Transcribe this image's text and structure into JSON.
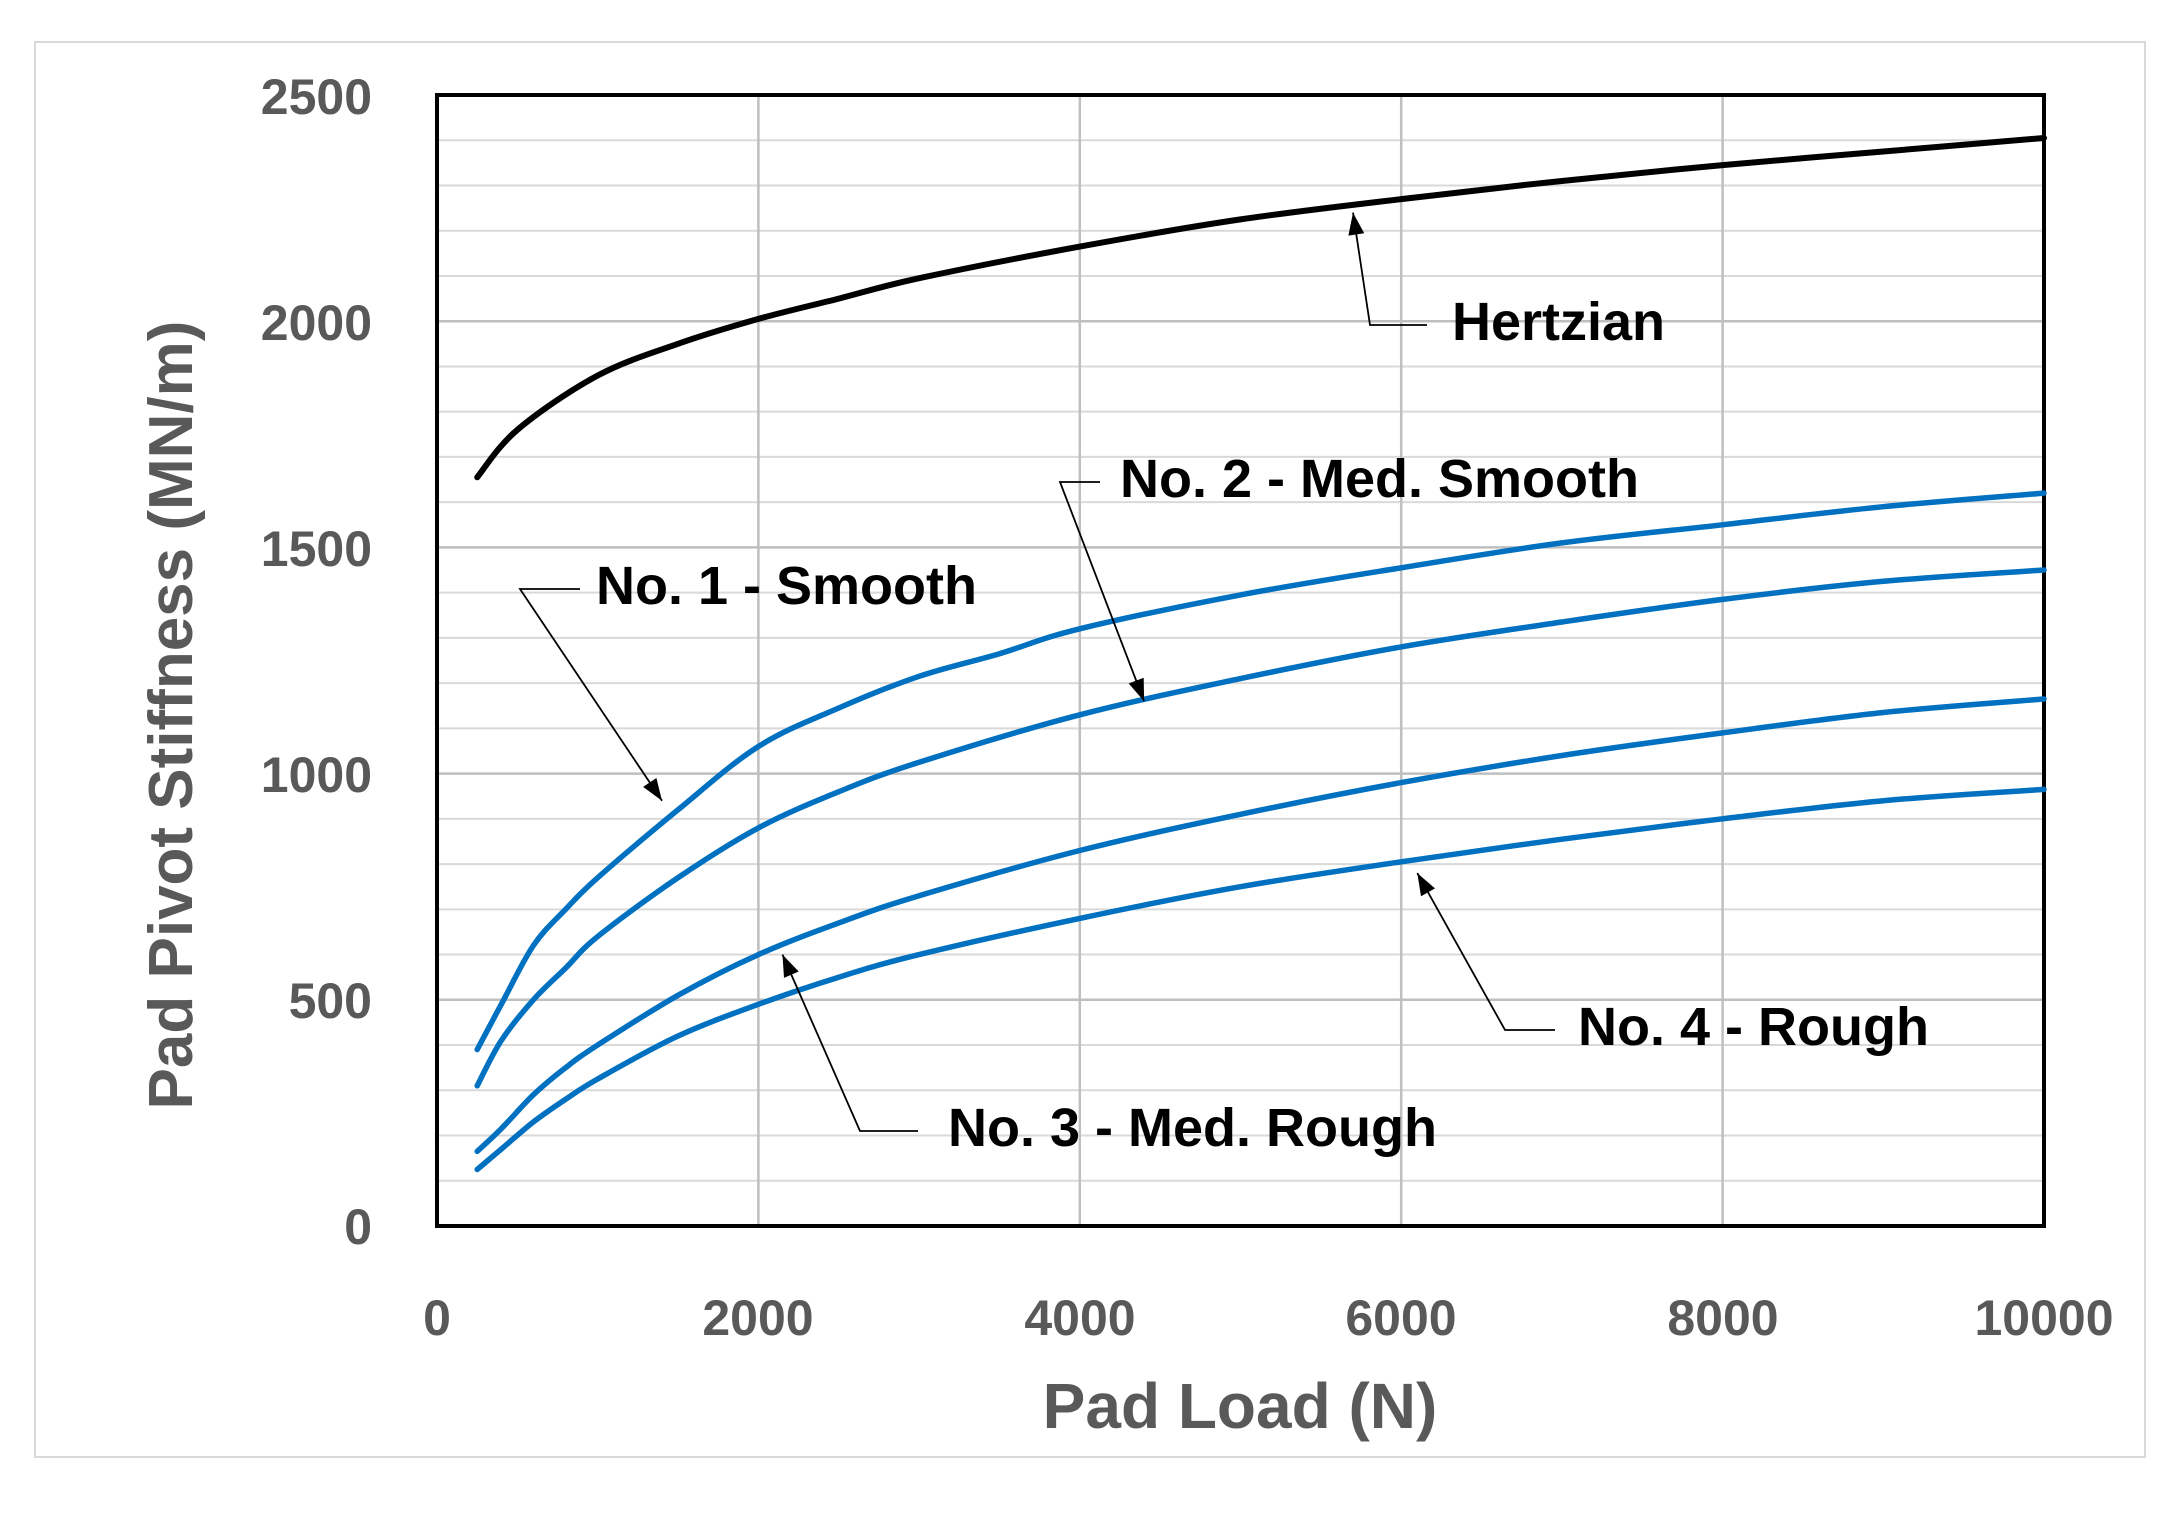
{
  "chart_data": {
    "type": "line",
    "title": "",
    "xlabel": "Pad Load (N)",
    "ylabel": "Pad Pivot Stiffness (MN/m)",
    "xlim": [
      0,
      10000
    ],
    "ylim": [
      0,
      2500
    ],
    "x_ticks": [
      "0",
      "2000",
      "4000",
      "6000",
      "8000",
      "10000"
    ],
    "y_ticks": [
      "0",
      "500",
      "1000",
      "1500",
      "2000",
      "2500"
    ],
    "grid": true,
    "series": [
      {
        "name": "Hertzian",
        "color": "#000000",
        "points": [
          [
            250,
            1655
          ],
          [
            500,
            1760
          ],
          [
            1000,
            1880
          ],
          [
            1500,
            1950
          ],
          [
            2000,
            2005
          ],
          [
            2500,
            2050
          ],
          [
            3000,
            2095
          ],
          [
            4000,
            2165
          ],
          [
            5000,
            2225
          ],
          [
            6000,
            2270
          ],
          [
            7000,
            2310
          ],
          [
            8000,
            2345
          ],
          [
            9000,
            2375
          ],
          [
            10000,
            2405
          ]
        ]
      },
      {
        "name": "No. 1 - Smooth",
        "color": "#0070C0",
        "points": [
          [
            250,
            390
          ],
          [
            400,
            490
          ],
          [
            600,
            620
          ],
          [
            800,
            700
          ],
          [
            1000,
            770
          ],
          [
            1500,
            920
          ],
          [
            2000,
            1060
          ],
          [
            2500,
            1145
          ],
          [
            3000,
            1215
          ],
          [
            3500,
            1265
          ],
          [
            4000,
            1320
          ],
          [
            5000,
            1395
          ],
          [
            6000,
            1455
          ],
          [
            7000,
            1510
          ],
          [
            8000,
            1550
          ],
          [
            9000,
            1590
          ],
          [
            10000,
            1620
          ]
        ]
      },
      {
        "name": "No. 2 - Med. Smooth",
        "color": "#0070C0",
        "points": [
          [
            250,
            310
          ],
          [
            400,
            410
          ],
          [
            600,
            500
          ],
          [
            800,
            570
          ],
          [
            1000,
            640
          ],
          [
            1500,
            770
          ],
          [
            2000,
            880
          ],
          [
            2500,
            960
          ],
          [
            3000,
            1025
          ],
          [
            4000,
            1130
          ],
          [
            5000,
            1210
          ],
          [
            6000,
            1280
          ],
          [
            7000,
            1335
          ],
          [
            8000,
            1385
          ],
          [
            9000,
            1425
          ],
          [
            10000,
            1450
          ]
        ]
      },
      {
        "name": "No. 3 - Med. Rough",
        "color": "#0070C0",
        "points": [
          [
            250,
            165
          ],
          [
            400,
            215
          ],
          [
            600,
            290
          ],
          [
            800,
            350
          ],
          [
            1000,
            400
          ],
          [
            1500,
            510
          ],
          [
            2000,
            600
          ],
          [
            2500,
            670
          ],
          [
            3000,
            730
          ],
          [
            4000,
            830
          ],
          [
            5000,
            910
          ],
          [
            6000,
            980
          ],
          [
            7000,
            1040
          ],
          [
            8000,
            1090
          ],
          [
            9000,
            1135
          ],
          [
            10000,
            1165
          ]
        ]
      },
      {
        "name": "No. 4 - Rough",
        "color": "#0070C0",
        "points": [
          [
            250,
            125
          ],
          [
            400,
            170
          ],
          [
            600,
            230
          ],
          [
            800,
            280
          ],
          [
            1000,
            325
          ],
          [
            1500,
            420
          ],
          [
            2000,
            490
          ],
          [
            2500,
            550
          ],
          [
            3000,
            600
          ],
          [
            4000,
            680
          ],
          [
            5000,
            750
          ],
          [
            6000,
            805
          ],
          [
            7000,
            855
          ],
          [
            8000,
            900
          ],
          [
            9000,
            940
          ],
          [
            10000,
            965
          ]
        ]
      }
    ],
    "annotations": [
      {
        "text": "Hertzian",
        "tip": [
          5700,
          2240
        ]
      },
      {
        "text": "No. 2 - Med. Smooth",
        "tip": [
          4400,
          1160
        ]
      },
      {
        "text": "No. 1 - Smooth",
        "tip": [
          1400,
          940
        ]
      },
      {
        "text": "No. 4 - Rough",
        "tip": [
          6100,
          780
        ]
      },
      {
        "text": "No. 3 - Med. Rough",
        "tip": [
          2150,
          600
        ]
      }
    ]
  }
}
